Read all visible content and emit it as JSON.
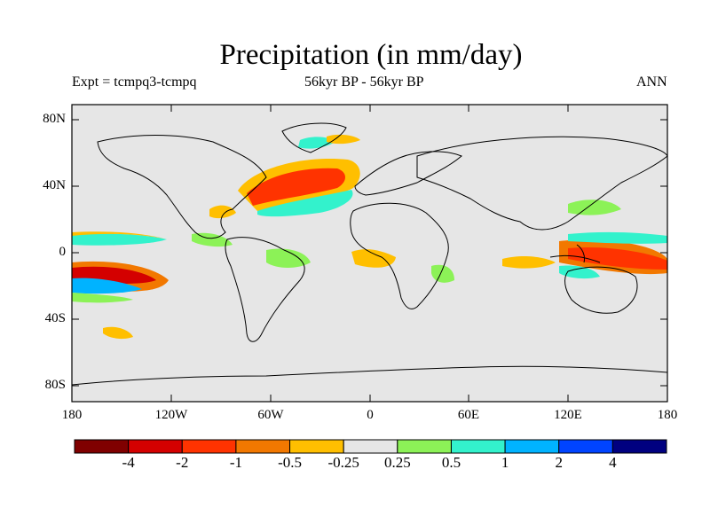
{
  "title": "Precipitation (in mm/day)",
  "experiment": "Expt = tcmpq3-tcmpq",
  "period": "56kyr BP - 56kyr BP",
  "season": "ANN",
  "lat_ticks": [
    "80N",
    "40N",
    "0",
    "40S",
    "80S"
  ],
  "lon_ticks": [
    "180",
    "120W",
    "60W",
    "0",
    "60E",
    "120E",
    "180"
  ],
  "map_background": "#e6e6e6",
  "colorbar": {
    "colors": [
      "#800000",
      "#d40000",
      "#ff3300",
      "#f27800",
      "#ffbf00",
      "#e6e6e6",
      "#8cf257",
      "#33f2cc",
      "#00b3ff",
      "#0044ff",
      "#000080"
    ],
    "labels": [
      "-4",
      "-2",
      "-1",
      "-0.5",
      "-0.25",
      "0.25",
      "0.5",
      "1",
      "2",
      "4"
    ]
  }
}
